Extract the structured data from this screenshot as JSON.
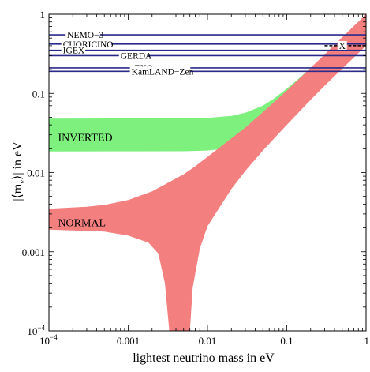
{
  "chart_data": {
    "type": "area",
    "xscale": "log",
    "yscale": "log",
    "xlim": [
      0.0001,
      1
    ],
    "ylim": [
      0.0001,
      1
    ],
    "xlabel": "lightest neutrino mass in eV",
    "ylabel_prefix": "|⟨m",
    "ylabel_sub": "ν",
    "ylabel_suffix": "⟩| in eV",
    "x_ticks": [
      {
        "value": 0.0001,
        "base": "10",
        "exp": "−4"
      },
      {
        "value": 0.001,
        "text": "0.001"
      },
      {
        "value": 0.01,
        "text": "0.01"
      },
      {
        "value": 0.1,
        "text": "0.1"
      },
      {
        "value": 1,
        "text": "1"
      }
    ],
    "y_ticks": [
      {
        "value": 0.0001,
        "base": "10",
        "exp": "−4"
      },
      {
        "value": 0.001,
        "text": "0.001"
      },
      {
        "value": 0.01,
        "text": "0.01"
      },
      {
        "value": 0.1,
        "text": "0.1"
      },
      {
        "value": 1,
        "text": "1"
      }
    ],
    "bands": [
      {
        "label": "INVERTED",
        "color": "#7ef07e",
        "label_pos": [
          0.00013,
          0.025
        ],
        "upper": [
          [
            0.0001,
            0.048
          ],
          [
            0.005,
            0.0485
          ],
          [
            0.01,
            0.049
          ],
          [
            0.02,
            0.052
          ],
          [
            0.03,
            0.057
          ],
          [
            0.05,
            0.07
          ],
          [
            0.07,
            0.087
          ],
          [
            0.1,
            0.115
          ],
          [
            0.15,
            0.162
          ],
          [
            0.2,
            0.21
          ]
        ],
        "lower": [
          [
            0.0001,
            0.0185
          ],
          [
            0.005,
            0.0186
          ],
          [
            0.01,
            0.019
          ],
          [
            0.02,
            0.0205
          ],
          [
            0.03,
            0.023
          ],
          [
            0.05,
            0.034
          ],
          [
            0.07,
            0.048
          ],
          [
            0.1,
            0.072
          ],
          [
            0.15,
            0.12
          ],
          [
            0.2,
            0.18
          ]
        ]
      },
      {
        "label": "NORMAL",
        "color": "#f47f7f",
        "label_pos": [
          0.00013,
          0.0021
        ],
        "upper": [
          [
            0.0001,
            0.0035
          ],
          [
            0.0003,
            0.0037
          ],
          [
            0.0005,
            0.0039
          ],
          [
            0.001,
            0.0045
          ],
          [
            0.002,
            0.0058
          ],
          [
            0.003,
            0.0072
          ],
          [
            0.005,
            0.0095
          ],
          [
            0.007,
            0.012
          ],
          [
            0.01,
            0.0158
          ],
          [
            0.02,
            0.027
          ],
          [
            0.03,
            0.037
          ],
          [
            0.05,
            0.058
          ],
          [
            0.1,
            0.108
          ],
          [
            0.2,
            0.21
          ],
          [
            0.3,
            0.31
          ],
          [
            0.5,
            0.51
          ],
          [
            1,
            1
          ]
        ],
        "lower": [
          [
            1,
            0.4
          ],
          [
            0.5,
            0.205
          ],
          [
            0.3,
            0.125
          ],
          [
            0.2,
            0.083
          ],
          [
            0.1,
            0.04
          ],
          [
            0.05,
            0.019
          ],
          [
            0.03,
            0.0105
          ],
          [
            0.02,
            0.0062
          ],
          [
            0.01,
            0.0021
          ],
          [
            0.008,
            0.0011
          ],
          [
            0.0065,
            0.00035
          ],
          [
            0.006,
            0.0001
          ],
          [
            0.0033,
            0.0001
          ],
          [
            0.0029,
            0.0004
          ],
          [
            0.0024,
            0.00095
          ],
          [
            0.0018,
            0.0013
          ],
          [
            0.001,
            0.0016
          ],
          [
            0.0005,
            0.0018
          ],
          [
            0.0001,
            0.0019
          ]
        ]
      }
    ],
    "limits": [
      {
        "label": "NEMO−3",
        "y": 0.55,
        "label_x": 0.00017
      },
      {
        "label": "CUORICINO",
        "y": 0.42,
        "label_x": 0.00015
      },
      {
        "label": "IGEX",
        "y": 0.35,
        "label_x": 0.00015
      },
      {
        "label": "GERDA",
        "y": 0.3,
        "label_x": 0.0008
      },
      {
        "label": "EXO",
        "y": 0.21,
        "label_x": 0.0012
      },
      {
        "label": "KamLAND−Zen",
        "y": 0.19,
        "label_x": 0.0011
      }
    ],
    "limit_color": "#2a2a8a",
    "marker": {
      "label": "X",
      "x": 0.5,
      "y": 0.4,
      "x_from": 0.3,
      "x_to": 1
    }
  }
}
